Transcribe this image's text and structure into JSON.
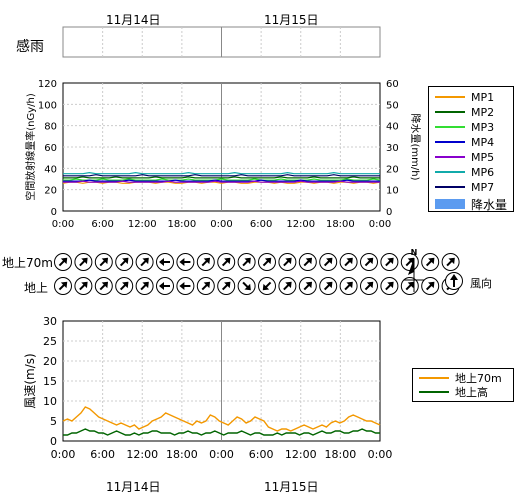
{
  "dates": {
    "top": [
      "11月14日",
      "11月15日"
    ],
    "bottom": [
      "11月14日",
      "11月15日"
    ]
  },
  "rain_strip_label": "感雨",
  "time_ticks": [
    "0:00",
    "6:00",
    "12:00",
    "18:00",
    "0:00",
    "6:00",
    "12:00",
    "18:00",
    "0:00"
  ],
  "wind_row_labels": [
    "地上70m",
    "地上"
  ],
  "compass_label": "N",
  "wind_direction_legend": "風向",
  "chart_data": [
    {
      "type": "line",
      "ylabel": "空間放射線量率(nGy/h)",
      "y2label": "降水量(mm/h)",
      "ylim": [
        0,
        120
      ],
      "y2lim": [
        0,
        60
      ],
      "yticks": [
        0,
        20,
        40,
        60,
        80,
        100,
        120
      ],
      "y2ticks": [
        0,
        10,
        20,
        30,
        40,
        50,
        60
      ],
      "grid": true,
      "legend_placement": "right",
      "series": [
        {
          "name": "MP1",
          "color": "#f39800",
          "values": [
            26,
            27,
            27,
            26,
            27,
            27,
            26,
            27,
            27,
            26,
            26,
            27,
            27,
            27,
            26,
            27,
            27,
            26,
            26,
            27,
            27,
            26,
            27,
            27,
            26,
            27,
            27,
            26,
            26,
            27,
            27,
            27,
            26,
            27,
            26,
            26,
            27,
            27,
            26,
            27,
            27,
            26,
            27,
            27,
            26,
            27,
            27,
            26,
            27
          ]
        },
        {
          "name": "MP2",
          "color": "#006400",
          "values": [
            31,
            31,
            31,
            32,
            31,
            31,
            31,
            31,
            32,
            31,
            31,
            31,
            31,
            31,
            32,
            31,
            31,
            31,
            31,
            32,
            31,
            31,
            31,
            31,
            31,
            31,
            32,
            31,
            31,
            31,
            31,
            31,
            31,
            32,
            31,
            31,
            31,
            31,
            32,
            31,
            31,
            31,
            31,
            31,
            32,
            31,
            31,
            31,
            31
          ]
        },
        {
          "name": "MP3",
          "color": "#33dd33",
          "values": [
            29,
            29,
            30,
            29,
            29,
            29,
            30,
            29,
            29,
            29,
            30,
            29,
            29,
            29,
            29,
            30,
            29,
            29,
            29,
            30,
            29,
            29,
            29,
            29,
            30,
            29,
            29,
            29,
            29,
            30,
            29,
            29,
            29,
            30,
            29,
            29,
            29,
            29,
            30,
            29,
            29,
            29,
            29,
            30,
            29,
            29,
            29,
            30,
            29
          ]
        },
        {
          "name": "MP4",
          "color": "#0000cc",
          "values": [
            28,
            28,
            28,
            28,
            29,
            28,
            28,
            28,
            28,
            28,
            29,
            28,
            28,
            28,
            28,
            28,
            28,
            29,
            28,
            28,
            28,
            28,
            28,
            29,
            28,
            28,
            28,
            28,
            28,
            28,
            29,
            28,
            28,
            28,
            28,
            28,
            29,
            28,
            28,
            28,
            28,
            28,
            28,
            29,
            28,
            28,
            28,
            28,
            28
          ]
        },
        {
          "name": "MP5",
          "color": "#8800cc",
          "values": [
            27,
            27,
            27,
            28,
            27,
            27,
            27,
            27,
            27,
            28,
            27,
            27,
            27,
            27,
            27,
            27,
            28,
            27,
            27,
            27,
            27,
            27,
            27,
            28,
            27,
            27,
            27,
            27,
            27,
            28,
            27,
            27,
            27,
            27,
            27,
            27,
            28,
            27,
            27,
            27,
            27,
            27,
            28,
            27,
            27,
            27,
            27,
            27,
            27
          ]
        },
        {
          "name": "MP6",
          "color": "#11aaaa",
          "values": [
            35,
            35,
            35,
            35,
            36,
            35,
            35,
            35,
            35,
            35,
            35,
            36,
            35,
            35,
            35,
            35,
            35,
            35,
            35,
            36,
            35,
            35,
            35,
            35,
            35,
            35,
            36,
            35,
            35,
            35,
            35,
            35,
            35,
            35,
            36,
            35,
            35,
            35,
            35,
            35,
            35,
            36,
            35,
            35,
            35,
            35,
            35,
            35,
            35
          ]
        },
        {
          "name": "MP7",
          "color": "#000066",
          "values": [
            33,
            33,
            33,
            33,
            33,
            34,
            33,
            33,
            33,
            33,
            33,
            33,
            34,
            33,
            33,
            33,
            33,
            33,
            33,
            33,
            34,
            33,
            33,
            33,
            33,
            33,
            33,
            34,
            33,
            33,
            33,
            33,
            33,
            33,
            34,
            33,
            33,
            33,
            33,
            33,
            33,
            34,
            33,
            33,
            33,
            33,
            33,
            33,
            33
          ]
        }
      ],
      "bars": {
        "name": "降水量",
        "color": "#5b9bf0",
        "values": []
      }
    },
    {
      "type": "line",
      "ylabel": "風速(m/s)",
      "ylim": [
        0,
        30
      ],
      "yticks": [
        0,
        5,
        10,
        15,
        20,
        25,
        30
      ],
      "grid": true,
      "legend_placement": "right",
      "series": [
        {
          "name": "地上70m",
          "color": "#f39800",
          "values": [
            5,
            5.5,
            5,
            6,
            7,
            8.5,
            8,
            7,
            6,
            5.5,
            5,
            4.5,
            4,
            4.5,
            4,
            3.5,
            4,
            3,
            3.5,
            4,
            5,
            5.5,
            6,
            7,
            6.5,
            6,
            5.5,
            5,
            4.5,
            4,
            5,
            4.5,
            5,
            6.5,
            6,
            5,
            4.5,
            4,
            5,
            6,
            5.5,
            4.5,
            5,
            6,
            5.5,
            5,
            3.5,
            3,
            2.5,
            3,
            3,
            2.5,
            3,
            3.5,
            4,
            3.5,
            3,
            3.5,
            4,
            3.5,
            4.5,
            5,
            4.5,
            5,
            6,
            6.5,
            6,
            5.5,
            5,
            5,
            4.5,
            4
          ]
        },
        {
          "name": "地上高",
          "color": "#006400",
          "values": [
            1.5,
            1.5,
            2,
            2,
            2.5,
            3,
            2.5,
            2.5,
            2,
            2,
            1.5,
            2,
            2.5,
            2,
            1.5,
            1.5,
            2,
            1.5,
            2,
            2,
            2.5,
            2.5,
            2,
            2,
            2,
            1.5,
            2,
            2,
            2.5,
            2,
            2,
            1.5,
            2,
            2,
            2.5,
            2,
            1.5,
            2,
            2,
            2,
            2.5,
            2,
            1.5,
            2,
            2,
            1.5,
            1.5,
            1.5,
            2,
            1.5,
            2,
            2,
            2,
            1.5,
            2,
            2,
            1.5,
            2,
            2.5,
            2,
            2,
            2.5,
            2.5,
            2,
            2,
            2.5,
            2.5,
            3,
            2.5,
            2.5,
            2,
            2
          ]
        }
      ]
    }
  ],
  "wind_directions": {
    "row70m": [
      "SW",
      "SW",
      "SW",
      "SW",
      "SW",
      "E",
      "E",
      "SW",
      "SW",
      "SW",
      "SW",
      "SW",
      "SW",
      "SW",
      "SW",
      "SW",
      "SW",
      "SW",
      "SW",
      "SW"
    ],
    "ground": [
      "SW",
      "SW",
      "SW",
      "SW",
      "SW",
      "E",
      "E",
      "SW",
      "SW",
      "NW",
      "NE",
      "SW",
      "SW",
      "SW",
      "SW",
      "SW",
      "SW",
      "SW",
      "SW",
      "SW"
    ]
  }
}
